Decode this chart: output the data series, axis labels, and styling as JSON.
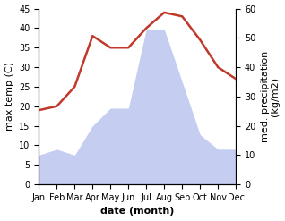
{
  "months": [
    "Jan",
    "Feb",
    "Mar",
    "Apr",
    "May",
    "Jun",
    "Jul",
    "Aug",
    "Sep",
    "Oct",
    "Nov",
    "Dec"
  ],
  "temperature": [
    19,
    20,
    25,
    38,
    35,
    35,
    40,
    44,
    43,
    37,
    30,
    27
  ],
  "precipitation": [
    10,
    12,
    10,
    20,
    26,
    26,
    53,
    53,
    35,
    17,
    12,
    12
  ],
  "temp_color": "#c0392b",
  "precip_fill_color": "#c5cdf0",
  "ylabel_left": "max temp (C)",
  "ylabel_right": "med. precipitation\n(kg/m2)",
  "xlabel": "date (month)",
  "ylim_left": [
    0,
    45
  ],
  "ylim_right": [
    0,
    60
  ],
  "temp_linewidth": 1.8,
  "label_fontsize": 8,
  "tick_fontsize": 7
}
